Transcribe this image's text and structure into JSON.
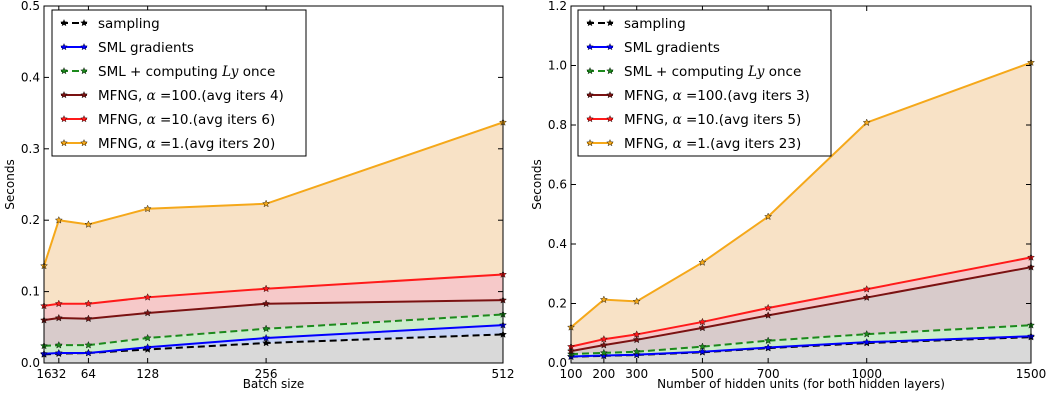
{
  "chart_data": [
    {
      "type": "area",
      "xlabel": "Batch size",
      "ylabel": "Seconds",
      "xlim": [
        16,
        512
      ],
      "ylim": [
        0,
        0.5
      ],
      "x": [
        16,
        32,
        64,
        128,
        256,
        512
      ],
      "xticks": [
        16,
        32,
        64,
        128,
        256,
        512
      ],
      "xtick_labels": [
        "16",
        "32",
        "64",
        "128",
        "256",
        "512"
      ],
      "yticks": [
        0,
        0.1,
        0.2,
        0.3,
        0.4,
        0.5
      ],
      "ytick_labels": [
        "0.0",
        "0.1",
        "0.2",
        "0.3",
        "0.4",
        "0.5"
      ],
      "grid": false,
      "legend_position": "upper-left",
      "series": [
        {
          "name": "sampling",
          "color": "#000000",
          "fill": "#d9d9d9",
          "dash": true,
          "values": [
            0.012,
            0.013,
            0.014,
            0.019,
            0.028,
            0.04
          ]
        },
        {
          "name": "SML gradients",
          "color": "#0000ff",
          "fill": "#c6d3f5",
          "dash": false,
          "values": [
            0.013,
            0.014,
            0.014,
            0.022,
            0.035,
            0.053
          ]
        },
        {
          "name": "SML + computing Ly once",
          "color": "#1c8a1c",
          "fill": "#cdeccd",
          "dash": true,
          "values": [
            0.024,
            0.025,
            0.025,
            0.035,
            0.048,
            0.068
          ]
        },
        {
          "name": "MFNG, α =100.(avg iters 4)",
          "color": "#7a1212",
          "fill": "#d8cbcb",
          "dash": false,
          "values": [
            0.06,
            0.063,
            0.062,
            0.07,
            0.083,
            0.088
          ]
        },
        {
          "name": "MFNG, α =10.(avg iters 6)",
          "color": "#ff1a1a",
          "fill": "#f6c9c9",
          "dash": false,
          "values": [
            0.08,
            0.083,
            0.083,
            0.092,
            0.104,
            0.124
          ]
        },
        {
          "name": "MFNG, α =1.(avg iters 20)",
          "color": "#f5a81a",
          "fill": "#f8e2c6",
          "dash": false,
          "values": [
            0.136,
            0.2,
            0.194,
            0.216,
            0.223,
            0.337
          ]
        }
      ],
      "legend_text": [
        {
          "pre": "sampling",
          "math": "",
          "post": ""
        },
        {
          "pre": "SML gradients",
          "math": "",
          "post": ""
        },
        {
          "pre": "SML + computing ",
          "math": "Ly",
          "post": " once"
        },
        {
          "pre": "MFNG, ",
          "math": "α",
          "post": " =100.(avg iters 4)"
        },
        {
          "pre": "MFNG, ",
          "math": "α",
          "post": " =10.(avg iters 6)"
        },
        {
          "pre": "MFNG, ",
          "math": "α",
          "post": " =1.(avg iters 20)"
        }
      ]
    },
    {
      "type": "area",
      "xlabel": "Number of hidden units (for both hidden layers)",
      "ylabel": "Seconds",
      "xlim": [
        100,
        1500
      ],
      "ylim": [
        0,
        1.2
      ],
      "x": [
        100,
        200,
        300,
        500,
        700,
        1000,
        1500
      ],
      "xticks": [
        100,
        200,
        300,
        500,
        700,
        1000,
        1500
      ],
      "xtick_labels": [
        "100",
        "200",
        "300",
        "500",
        "700",
        "1000",
        "1500"
      ],
      "yticks": [
        0,
        0.2,
        0.4,
        0.6,
        0.8,
        1.0,
        1.2
      ],
      "ytick_labels": [
        "0.0",
        "0.2",
        "0.4",
        "0.6",
        "0.8",
        "1.0",
        "1.2"
      ],
      "grid": false,
      "legend_position": "upper-left",
      "series": [
        {
          "name": "sampling",
          "color": "#000000",
          "fill": "#d9d9d9",
          "dash": true,
          "values": [
            0.021,
            0.024,
            0.027,
            0.036,
            0.05,
            0.067,
            0.087
          ]
        },
        {
          "name": "SML gradients",
          "color": "#0000ff",
          "fill": "#c6d3f5",
          "dash": false,
          "values": [
            0.022,
            0.025,
            0.028,
            0.038,
            0.052,
            0.07,
            0.09
          ]
        },
        {
          "name": "SML + computing Ly once",
          "color": "#1c8a1c",
          "fill": "#cdeccd",
          "dash": true,
          "values": [
            0.03,
            0.034,
            0.038,
            0.055,
            0.075,
            0.097,
            0.127
          ]
        },
        {
          "name": "MFNG, α =100.(avg iters 3)",
          "color": "#7a1212",
          "fill": "#d8cbcb",
          "dash": false,
          "values": [
            0.04,
            0.06,
            0.078,
            0.118,
            0.16,
            0.22,
            0.322
          ]
        },
        {
          "name": "MFNG, α =10.(avg iters 5)",
          "color": "#ff1a1a",
          "fill": "#f6c9c9",
          "dash": false,
          "values": [
            0.055,
            0.08,
            0.096,
            0.138,
            0.185,
            0.248,
            0.355
          ]
        },
        {
          "name": "MFNG, α =1.(avg iters 23)",
          "color": "#f5a81a",
          "fill": "#f8e2c6",
          "dash": false,
          "values": [
            0.12,
            0.213,
            0.207,
            0.338,
            0.492,
            0.808,
            1.01
          ]
        }
      ],
      "legend_text": [
        {
          "pre": "sampling",
          "math": "",
          "post": ""
        },
        {
          "pre": "SML gradients",
          "math": "",
          "post": ""
        },
        {
          "pre": "SML + computing ",
          "math": "Ly",
          "post": " once"
        },
        {
          "pre": "MFNG, ",
          "math": "α",
          "post": " =100.(avg iters 3)"
        },
        {
          "pre": "MFNG, ",
          "math": "α",
          "post": " =10.(avg iters 5)"
        },
        {
          "pre": "MFNG, ",
          "math": "α",
          "post": " =1.(avg iters 23)"
        }
      ]
    }
  ]
}
